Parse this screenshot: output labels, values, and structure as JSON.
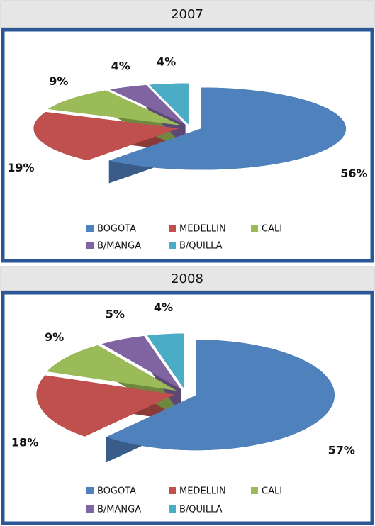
{
  "chart_data": [
    {
      "type": "pie",
      "title": "2007",
      "categories": [
        "BOGOTA",
        "MEDELLIN",
        "CALI",
        "B/MANGA",
        "B/QUILLA"
      ],
      "values": [
        56,
        19,
        9,
        4,
        4
      ],
      "value_labels": [
        "56%",
        "19%",
        "9%",
        "4%",
        "4%"
      ],
      "colors": [
        "#4f81bd",
        "#c0504d",
        "#9bbb59",
        "#8064a2",
        "#4bacc6"
      ]
    },
    {
      "type": "pie",
      "title": "2008",
      "categories": [
        "BOGOTA",
        "MEDELLIN",
        "CALI",
        "B/MANGA",
        "B/QUILLA"
      ],
      "values": [
        57,
        18,
        9,
        5,
        4
      ],
      "value_labels": [
        "57%",
        "18%",
        "9%",
        "5%",
        "4%"
      ],
      "colors": [
        "#4f81bd",
        "#c0504d",
        "#9bbb59",
        "#8064a2",
        "#4bacc6"
      ]
    }
  ]
}
